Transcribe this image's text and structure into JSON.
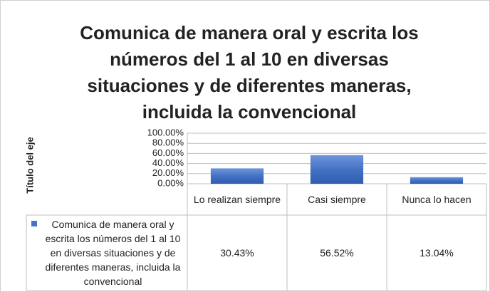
{
  "chart_data": {
    "type": "bar",
    "title": "Comunica de manera oral y escrita los números del 1 al 10 en diversas situaciones y de diferentes maneras, incluida la convencional",
    "y_axis_label": "Título del eje",
    "categories": [
      "Lo realizan siempre",
      "Casi siempre",
      "Nunca lo hacen"
    ],
    "series": [
      {
        "name": "Comunica de manera oral y escrita los números del 1 al 10 en diversas situaciones y de diferentes maneras, incluida la convencional",
        "color": "#4472c4",
        "values": [
          30.43,
          56.52,
          13.04
        ],
        "value_labels": [
          "30.43%",
          "56.52%",
          "13.04%"
        ]
      }
    ],
    "ylim": [
      0,
      100
    ],
    "yticks": [
      {
        "value": 0,
        "label": "0.00%"
      },
      {
        "value": 20,
        "label": "20.00%"
      },
      {
        "value": 40,
        "label": "40.00%"
      },
      {
        "value": 60,
        "label": "60.00%"
      },
      {
        "value": 80,
        "label": "80.00%"
      },
      {
        "value": 100,
        "label": "100.00%"
      }
    ],
    "grid": true,
    "data_table": true
  }
}
